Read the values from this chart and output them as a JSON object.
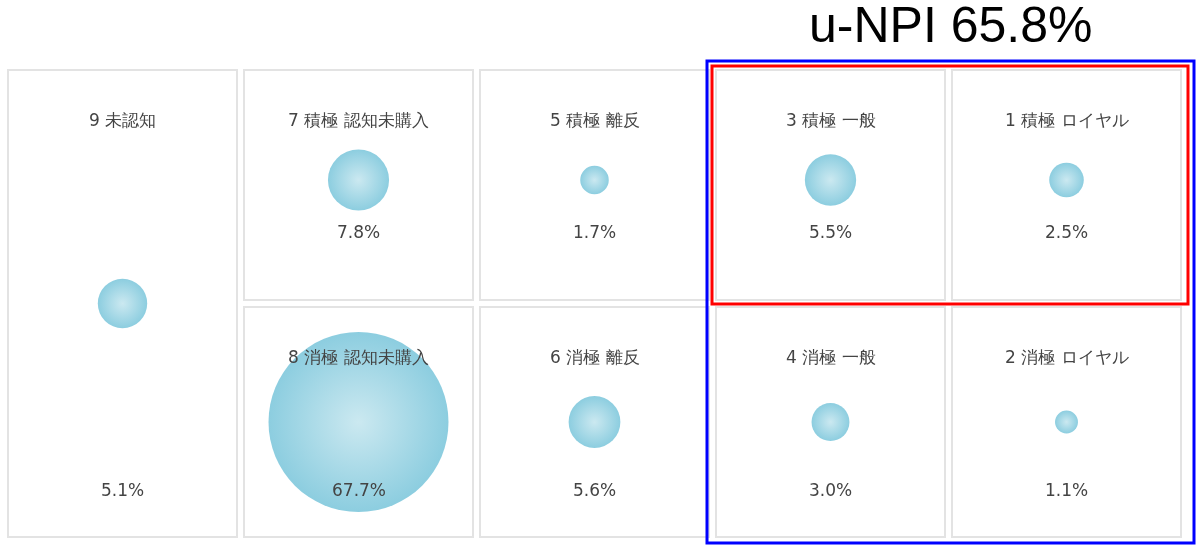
{
  "chart_data": {
    "type": "other",
    "categories": [
      "9 未認知",
      "7 積極 認知未購入",
      "5 積極 離反",
      "3 積極 一般",
      "1 積極 ロイヤル",
      "8 消極 認知未購入",
      "6 消極 離反",
      "4 消極 一般",
      "2 消極 ロイヤル"
    ],
    "values": [
      5.1,
      7.8,
      1.7,
      5.5,
      2.5,
      67.7,
      5.6,
      3.0,
      1.1
    ],
    "value_labels": [
      "5.1%",
      "7.8%",
      "1.7%",
      "5.5%",
      "2.5%",
      "67.7%",
      "5.6%",
      "3.0%",
      "1.1%"
    ],
    "color": "#5bb8d2",
    "annotations": [
      "u-NPI 65.8%"
    ]
  }
}
